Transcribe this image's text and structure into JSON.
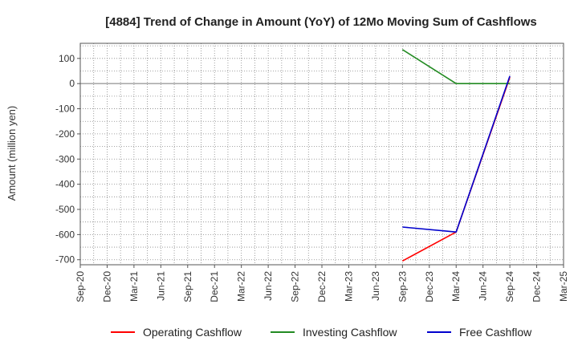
{
  "chart_data": {
    "type": "line",
    "title": "[4884]  Trend of Change in Amount (YoY) of 12Mo Moving Sum of Cashflows",
    "xlabel": "",
    "ylabel": "Amount (million yen)",
    "categories": [
      "Sep-20",
      "Dec-20",
      "Mar-21",
      "Jun-21",
      "Sep-21",
      "Dec-21",
      "Mar-22",
      "Jun-22",
      "Sep-22",
      "Dec-22",
      "Mar-23",
      "Jun-23",
      "Sep-23",
      "Dec-23",
      "Mar-24",
      "Jun-24",
      "Sep-24",
      "Dec-24",
      "Mar-25"
    ],
    "yticks": [
      100,
      0,
      -100,
      -200,
      -300,
      -400,
      -500,
      -600,
      -700
    ],
    "ylim": [
      -720,
      160
    ],
    "grid": true,
    "legend_position": "bottom",
    "series": [
      {
        "name": "Operating Cashflow",
        "color": "#ff0000",
        "values": [
          null,
          null,
          null,
          null,
          null,
          null,
          null,
          null,
          null,
          null,
          null,
          null,
          -705,
          null,
          -590,
          null,
          25,
          null,
          null
        ]
      },
      {
        "name": "Investing Cashflow",
        "color": "#228b22",
        "values": [
          null,
          null,
          null,
          null,
          null,
          null,
          null,
          null,
          null,
          null,
          null,
          null,
          135,
          null,
          0,
          null,
          0,
          null,
          null
        ]
      },
      {
        "name": "Free Cashflow",
        "color": "#0000cd",
        "values": [
          null,
          null,
          null,
          null,
          null,
          null,
          null,
          null,
          null,
          null,
          null,
          null,
          -570,
          null,
          -590,
          null,
          30,
          null,
          null
        ]
      }
    ]
  }
}
